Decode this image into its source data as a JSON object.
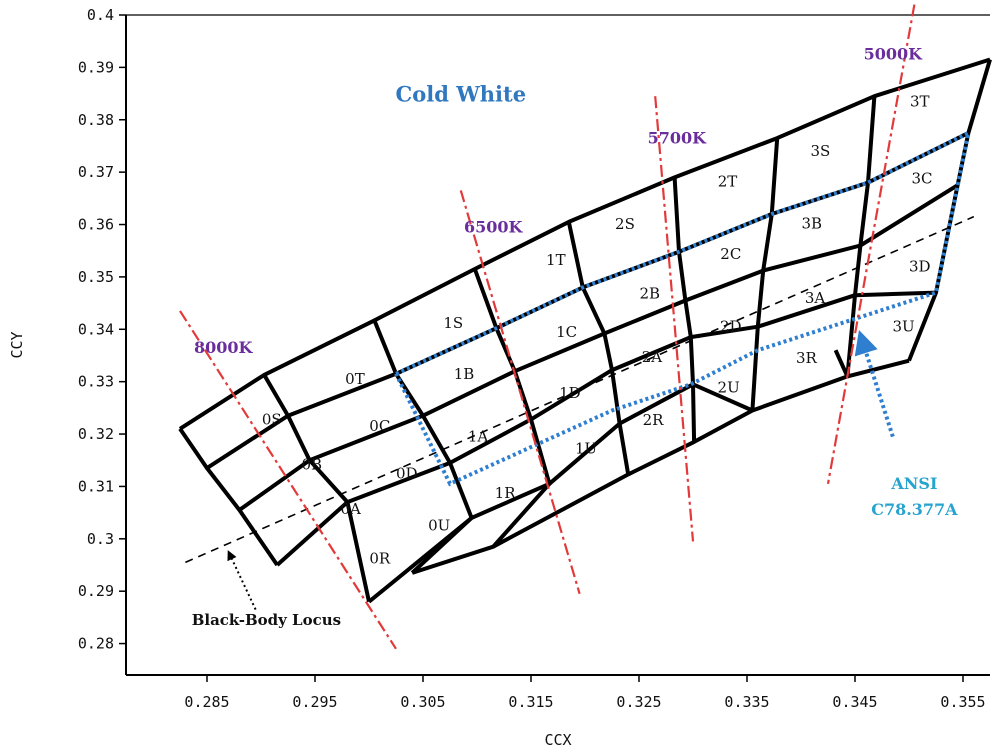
{
  "chart_data": {
    "type": "diagram",
    "title": "Cold White",
    "xlabel": "CCX",
    "ylabel": "CCY",
    "xlim": [
      0.2775,
      0.3575
    ],
    "ylim": [
      0.274,
      0.4
    ],
    "xticks": [
      "0.285",
      "0.295",
      "0.305",
      "0.315",
      "0.325",
      "0.335",
      "0.345",
      "0.355"
    ],
    "yticks": [
      "0.28",
      "0.29",
      "0.3",
      "0.31",
      "0.32",
      "0.33",
      "0.34",
      "0.35",
      "0.36",
      "0.37",
      "0.38",
      "0.39",
      "0.4"
    ],
    "tick_values_x": [
      0.285,
      0.295,
      0.305,
      0.315,
      0.325,
      0.335,
      0.345,
      0.355
    ],
    "tick_values_y": [
      0.28,
      0.29,
      0.3,
      0.31,
      0.32,
      0.33,
      0.34,
      0.35,
      0.36,
      0.37,
      0.38,
      0.39,
      0.4
    ],
    "colors": {
      "grid": "#000000",
      "cct_lines": "#e23a3a",
      "ansi_outline": "#2f7fd0",
      "black_body": "#000000",
      "cct_text": "#6a2d9c",
      "title_text": "#2f78bf",
      "ansi_text": "#27a3cf"
    },
    "cct_lines": [
      {
        "name": "8000K",
        "from": [
          0.2825,
          0.3435
        ],
        "to": [
          0.3025,
          0.279
        ],
        "label_at": [
          0.2865,
          0.3355
        ]
      },
      {
        "name": "6500K",
        "from": [
          0.3085,
          0.3665
        ],
        "to": [
          0.3195,
          0.2895
        ],
        "label_at": [
          0.3115,
          0.3585
        ]
      },
      {
        "name": "5700K",
        "from": [
          0.3265,
          0.3845
        ],
        "to": [
          0.33,
          0.2995
        ],
        "label_at": [
          0.3285,
          0.3755
        ]
      },
      {
        "name": "5000K",
        "from": [
          0.3505,
          0.402
        ],
        "to": [
          0.3425,
          0.3105
        ],
        "label_at": [
          0.3485,
          0.3915
        ]
      }
    ],
    "bins": [
      {
        "label": "0S",
        "at": [
          0.291,
          0.3228
        ]
      },
      {
        "label": "0T",
        "at": [
          0.2987,
          0.3305
        ]
      },
      {
        "label": "0B",
        "at": [
          0.2947,
          0.3142
        ]
      },
      {
        "label": "0C",
        "at": [
          0.301,
          0.3215
        ]
      },
      {
        "label": "0A",
        "at": [
          0.2983,
          0.3057
        ]
      },
      {
        "label": "0D",
        "at": [
          0.3035,
          0.3125
        ]
      },
      {
        "label": "0R",
        "at": [
          0.301,
          0.2962
        ]
      },
      {
        "label": "0U",
        "at": [
          0.3065,
          0.3025
        ]
      },
      {
        "label": "1S",
        "at": [
          0.3078,
          0.3412
        ]
      },
      {
        "label": "1B",
        "at": [
          0.3088,
          0.3315
        ]
      },
      {
        "label": "1A",
        "at": [
          0.3101,
          0.3195
        ]
      },
      {
        "label": "1R",
        "at": [
          0.3126,
          0.3087
        ]
      },
      {
        "label": "1T",
        "at": [
          0.3173,
          0.3532
        ]
      },
      {
        "label": "1C",
        "at": [
          0.3183,
          0.3395
        ]
      },
      {
        "label": "1D",
        "at": [
          0.3186,
          0.3278
        ]
      },
      {
        "label": "1U",
        "at": [
          0.3201,
          0.3172
        ]
      },
      {
        "label": "2S",
        "at": [
          0.3237,
          0.3601
        ]
      },
      {
        "label": "2B",
        "at": [
          0.326,
          0.3468
        ]
      },
      {
        "label": "2A",
        "at": [
          0.3262,
          0.3347
        ]
      },
      {
        "label": "2R",
        "at": [
          0.3263,
          0.3227
        ]
      },
      {
        "label": "2T",
        "at": [
          0.3332,
          0.3682
        ]
      },
      {
        "label": "2C",
        "at": [
          0.3335,
          0.3544
        ]
      },
      {
        "label": "2D",
        "at": [
          0.3335,
          0.3405
        ]
      },
      {
        "label": "2U",
        "at": [
          0.3333,
          0.3289
        ]
      },
      {
        "label": "3S",
        "at": [
          0.3418,
          0.374
        ]
      },
      {
        "label": "3B",
        "at": [
          0.341,
          0.3602
        ]
      },
      {
        "label": "3A",
        "at": [
          0.3413,
          0.346
        ]
      },
      {
        "label": "3R",
        "at": [
          0.3405,
          0.3345
        ]
      },
      {
        "label": "3T",
        "at": [
          0.351,
          0.3835
        ]
      },
      {
        "label": "3C",
        "at": [
          0.3512,
          0.3688
        ]
      },
      {
        "label": "3D",
        "at": [
          0.351,
          0.352
        ]
      },
      {
        "label": "3U",
        "at": [
          0.3495,
          0.3405
        ]
      }
    ],
    "grid_columns": [
      [
        [
          0.2825,
          0.321
        ],
        [
          0.285,
          0.3135
        ],
        [
          0.288,
          0.3055
        ],
        [
          0.2915,
          0.295
        ]
      ],
      [
        [
          0.2903,
          0.3313
        ],
        [
          0.2925,
          0.3235
        ],
        [
          0.2945,
          0.315
        ],
        [
          0.298,
          0.307
        ],
        [
          0.3,
          0.288
        ]
      ],
      [
        [
          0.3005,
          0.3417
        ],
        [
          0.3025,
          0.3315
        ],
        [
          0.305,
          0.3235
        ],
        [
          0.3075,
          0.3145
        ],
        [
          0.3095,
          0.304
        ],
        [
          0.304,
          0.2935
        ]
      ],
      [
        [
          0.3098,
          0.3515
        ],
        [
          0.3118,
          0.3402
        ],
        [
          0.3135,
          0.332
        ],
        [
          0.315,
          0.3228
        ],
        [
          0.3167,
          0.3105
        ],
        [
          0.3115,
          0.2985
        ]
      ],
      [
        [
          0.3185,
          0.3605
        ],
        [
          0.3198,
          0.348
        ],
        [
          0.3218,
          0.3392
        ],
        [
          0.3225,
          0.3322
        ],
        [
          0.3232,
          0.322
        ],
        [
          0.324,
          0.3123
        ]
      ],
      [
        [
          0.3283,
          0.369
        ],
        [
          0.3287,
          0.3548
        ],
        [
          0.3293,
          0.3455
        ],
        [
          0.3298,
          0.3385
        ],
        [
          0.33,
          0.3295
        ],
        [
          0.3301,
          0.3185
        ]
      ],
      [
        [
          0.3378,
          0.3765
        ],
        [
          0.3373,
          0.362
        ],
        [
          0.3365,
          0.3512
        ],
        [
          0.336,
          0.3405
        ],
        [
          0.3355,
          0.3245
        ]
      ],
      [
        [
          0.3468,
          0.3845
        ],
        [
          0.3462,
          0.368
        ],
        [
          0.3455,
          0.356
        ],
        [
          0.345,
          0.3465
        ],
        [
          0.3443,
          0.331
        ],
        [
          0.3432,
          0.336
        ]
      ],
      [
        [
          0.3575,
          0.3915
        ],
        [
          0.3555,
          0.3775
        ],
        [
          0.3545,
          0.3675
        ],
        [
          0.3525,
          0.347
        ],
        [
          0.35,
          0.334
        ]
      ]
    ],
    "grid_rows": [
      [
        [
          0.2825,
          0.321
        ],
        [
          0.2903,
          0.3313
        ],
        [
          0.3005,
          0.3417
        ],
        [
          0.3098,
          0.3515
        ],
        [
          0.3185,
          0.3605
        ],
        [
          0.3283,
          0.369
        ],
        [
          0.3378,
          0.3765
        ],
        [
          0.3468,
          0.3845
        ],
        [
          0.3575,
          0.3915
        ]
      ],
      [
        [
          0.285,
          0.3135
        ],
        [
          0.2925,
          0.3235
        ],
        [
          0.3025,
          0.3315
        ],
        [
          0.3118,
          0.3402
        ],
        [
          0.3198,
          0.348
        ],
        [
          0.3287,
          0.3548
        ],
        [
          0.3373,
          0.362
        ],
        [
          0.3462,
          0.368
        ],
        [
          0.3555,
          0.3775
        ]
      ],
      [
        [
          0.288,
          0.3055
        ],
        [
          0.2945,
          0.315
        ],
        [
          0.305,
          0.3235
        ],
        [
          0.3135,
          0.332
        ],
        [
          0.3218,
          0.3392
        ],
        [
          0.3293,
          0.3455
        ],
        [
          0.3365,
          0.3512
        ],
        [
          0.3455,
          0.356
        ],
        [
          0.3545,
          0.3675
        ]
      ],
      [
        [
          0.2915,
          0.295
        ],
        [
          0.298,
          0.307
        ],
        [
          0.3075,
          0.3145
        ],
        [
          0.315,
          0.3228
        ],
        [
          0.3225,
          0.3322
        ],
        [
          0.3298,
          0.3385
        ],
        [
          0.336,
          0.3405
        ],
        [
          0.345,
          0.3465
        ],
        [
          0.3525,
          0.347
        ]
      ],
      [
        [
          0.3,
          0.288
        ],
        [
          0.3095,
          0.304
        ],
        [
          0.3167,
          0.3105
        ],
        [
          0.3232,
          0.322
        ],
        [
          0.33,
          0.3295
        ],
        [
          0.3355,
          0.3245
        ],
        [
          0.3443,
          0.331
        ],
        [
          0.35,
          0.334
        ]
      ],
      [
        [
          0.304,
          0.2935
        ],
        [
          0.3115,
          0.2985
        ],
        [
          0.324,
          0.3123
        ],
        [
          0.3301,
          0.3185
        ],
        [
          0.3355,
          0.3245
        ]
      ]
    ],
    "ansi_outline": [
      [
        0.3025,
        0.3315
      ],
      [
        0.3118,
        0.3402
      ],
      [
        0.3198,
        0.348
      ],
      [
        0.3287,
        0.3548
      ],
      [
        0.3373,
        0.362
      ],
      [
        0.3462,
        0.368
      ],
      [
        0.3555,
        0.3775
      ],
      [
        0.3525,
        0.347
      ],
      [
        0.345,
        0.342
      ],
      [
        0.336,
        0.336
      ],
      [
        0.3298,
        0.3295
      ],
      [
        0.3225,
        0.3245
      ],
      [
        0.315,
        0.3175
      ],
      [
        0.3075,
        0.3105
      ],
      [
        0.3025,
        0.3315
      ]
    ],
    "black_body_locus": {
      "from": [
        0.283,
        0.2955
      ],
      "to": [
        0.356,
        0.3615
      ]
    },
    "annotations": {
      "title": {
        "text": "Cold White",
        "at": [
          0.3085,
          0.3835
        ]
      },
      "ansi": {
        "text_1": "ANSI",
        "text_2": "C78.377A",
        "at": [
          0.3505,
          0.3095
        ],
        "arrow_from": [
          0.3485,
          0.3195
        ],
        "arrow_to": [
          0.3455,
          0.339
        ]
      },
      "black_body": {
        "text": "Black-Body Locus",
        "at": [
          0.2905,
          0.2835
        ],
        "arrow_from": [
          0.2895,
          0.2865
        ],
        "arrow_to": [
          0.287,
          0.2975
        ]
      }
    }
  }
}
